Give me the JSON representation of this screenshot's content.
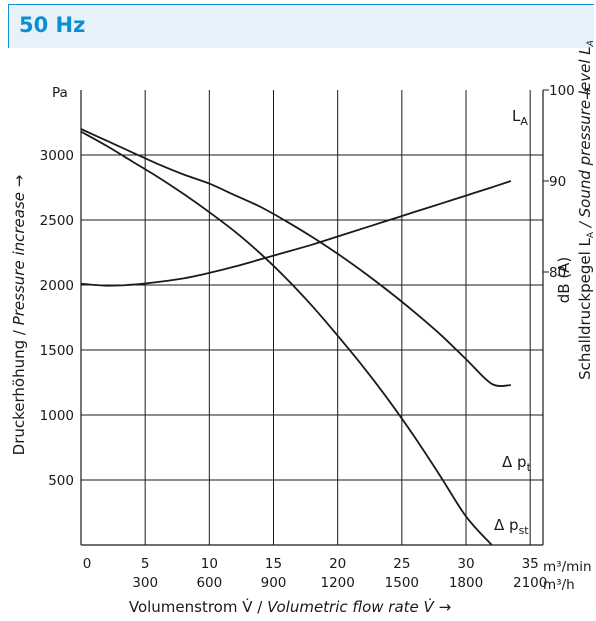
{
  "header": {
    "title": "50 Hz"
  },
  "colors": {
    "accent": "#0a8fd0",
    "header_bg": "#e6f1fa",
    "curve": "#1a1a1a"
  },
  "chart_data": {
    "type": "line",
    "title": "50 Hz",
    "xlabel_plain": "Volumenstrom V̇ / ",
    "xlabel_italic": "Volumetric flow rate V̇ →",
    "ylabel_plain": "Druckerhöhung / ",
    "ylabel_italic": "Pressure increase →",
    "y2label_plain": "Schalldruckpegel L",
    "y2label_sub": "A",
    "y2label_italic": " / Sound pressure level L",
    "y2label_italic_sub": "A",
    "y2_top_arrow": "↑",
    "y2_unit": "dB (A)",
    "xlim": [
      0,
      36
    ],
    "ylim": [
      0,
      3500
    ],
    "y2lim": [
      50,
      100
    ],
    "x_ticks_min": [
      "0",
      "5",
      "10",
      "15",
      "20",
      "25",
      "30",
      "35"
    ],
    "x_ticks_h": [
      "300",
      "600",
      "900",
      "1200",
      "1500",
      "1800",
      "2100"
    ],
    "x_unit_min": "m³/min",
    "x_unit_h": "m³/h",
    "y_unit": "Pa",
    "y_ticks": [
      "500",
      "1000",
      "1500",
      "2000",
      "2500",
      "3000"
    ],
    "y2_ticks": [
      "80",
      "90",
      "100"
    ],
    "grid": true,
    "series": [
      {
        "name": "Δ pt",
        "label_main": "Δ p",
        "label_sub": "t",
        "axis": "left",
        "x": [
          0,
          2,
          4,
          6,
          8,
          10,
          12,
          14,
          16,
          18,
          20,
          22,
          24,
          26,
          28,
          30,
          32,
          33.5
        ],
        "y": [
          3200,
          3110,
          3020,
          2930,
          2850,
          2780,
          2690,
          2600,
          2490,
          2370,
          2240,
          2100,
          1950,
          1790,
          1620,
          1430,
          1240,
          1230
        ]
      },
      {
        "name": "Δ pst",
        "label_main": "Δ p",
        "label_sub": "st",
        "axis": "left",
        "x": [
          0,
          2,
          4,
          6,
          8,
          10,
          12,
          14,
          16,
          18,
          20,
          22,
          24,
          26,
          28,
          30,
          32,
          33.5
        ],
        "y": [
          3180,
          3070,
          2950,
          2830,
          2700,
          2560,
          2410,
          2240,
          2050,
          1840,
          1610,
          1370,
          1110,
          830,
          530,
          220,
          0,
          0
        ]
      },
      {
        "name": "LA",
        "label_main": "L",
        "label_sub": "A",
        "axis": "right",
        "x": [
          0,
          2,
          4,
          6,
          8,
          10,
          12,
          14,
          16,
          18,
          20,
          22,
          24,
          26,
          28,
          30,
          32,
          33.5
        ],
        "y": [
          78.7,
          78.5,
          78.6,
          78.9,
          79.3,
          79.9,
          80.6,
          81.4,
          82.2,
          83.0,
          83.9,
          84.8,
          85.7,
          86.6,
          87.5,
          88.4,
          89.3,
          90.0
        ]
      }
    ]
  }
}
